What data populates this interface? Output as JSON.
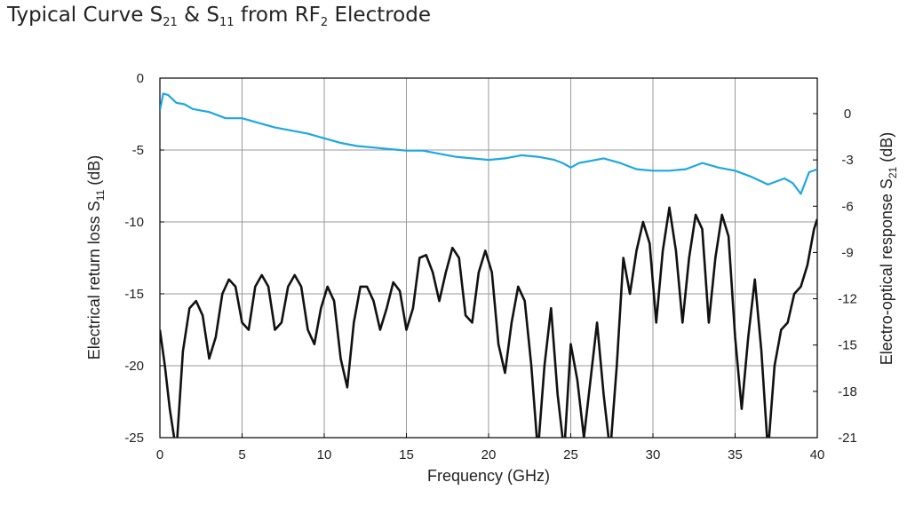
{
  "title": {
    "prefix": "Typical Curve S",
    "s21_sub": "21",
    "mid": " & S",
    "s11_sub": "11",
    "mid2": " from RF",
    "rf_sub": "2",
    "suffix": " Electrode"
  },
  "chart_data": {
    "type": "line",
    "xlabel": "Frequency (GHz)",
    "ylabel_left": {
      "text": "Electrical return loss S",
      "sub": "11",
      "unit": " (dB)"
    },
    "ylabel_right": {
      "text": "Electro-optical response S",
      "sub": "21",
      "unit": " (dB)"
    },
    "xlim": [
      0,
      40
    ],
    "ylim_left": [
      -25,
      0
    ],
    "ylim_right": [
      -21,
      2.3
    ],
    "xticks": [
      "0",
      "5",
      "10",
      "15",
      "20",
      "25",
      "30",
      "35",
      "40"
    ],
    "yticks_left": [
      "0",
      "-5",
      "-10",
      "-15",
      "-20",
      "-25"
    ],
    "yticks_right": [
      "0",
      "-3",
      "-6",
      "-9",
      "-12",
      "-15",
      "-18",
      "-21"
    ],
    "grid": true,
    "colors": {
      "s21": "#1ea7e1",
      "s11": "#111111"
    },
    "series": [
      {
        "key": "s21",
        "axis": "right",
        "x": [
          0,
          0.2,
          0.5,
          1,
          1.5,
          2,
          3,
          4,
          5,
          6,
          7,
          8,
          9,
          10,
          11,
          12,
          13,
          14,
          15,
          16,
          17,
          18,
          19,
          20,
          21,
          22,
          23,
          24,
          24.5,
          25,
          25.5,
          26,
          27,
          28,
          29,
          30,
          31,
          32,
          33,
          34,
          35,
          36,
          37,
          38,
          38.5,
          39,
          39.5,
          40
        ],
        "y": [
          0.2,
          1.3,
          1.2,
          0.7,
          0.6,
          0.3,
          0.1,
          -0.3,
          -0.3,
          -0.6,
          -0.9,
          -1.1,
          -1.3,
          -1.6,
          -1.9,
          -2.1,
          -2.2,
          -2.3,
          -2.4,
          -2.4,
          -2.6,
          -2.8,
          -2.9,
          -3.0,
          -2.9,
          -2.7,
          -2.8,
          -3.0,
          -3.2,
          -3.5,
          -3.2,
          -3.1,
          -2.9,
          -3.2,
          -3.6,
          -3.7,
          -3.7,
          -3.6,
          -3.2,
          -3.5,
          -3.7,
          -4.1,
          -4.6,
          -4.2,
          -4.5,
          -5.2,
          -3.8,
          -3.6
        ]
      },
      {
        "key": "s11",
        "axis": "left",
        "x": [
          0,
          0.3,
          0.6,
          1.0,
          1.4,
          1.8,
          2.2,
          2.6,
          3.0,
          3.4,
          3.8,
          4.2,
          4.6,
          5.0,
          5.4,
          5.8,
          6.2,
          6.6,
          7.0,
          7.4,
          7.8,
          8.2,
          8.6,
          9.0,
          9.4,
          9.8,
          10.2,
          10.6,
          11.0,
          11.4,
          11.8,
          12.2,
          12.6,
          13.0,
          13.4,
          13.8,
          14.2,
          14.6,
          15.0,
          15.4,
          15.8,
          16.2,
          16.6,
          17.0,
          17.4,
          17.8,
          18.2,
          18.6,
          19.0,
          19.4,
          19.8,
          20.2,
          20.6,
          21.0,
          21.4,
          21.8,
          22.2,
          22.6,
          23.0,
          23.4,
          23.8,
          24.2,
          24.6,
          25.0,
          25.4,
          25.8,
          26.2,
          26.6,
          27.0,
          27.4,
          27.8,
          28.2,
          28.6,
          29.0,
          29.4,
          29.8,
          30.2,
          30.6,
          31.0,
          31.4,
          31.8,
          32.2,
          32.6,
          33.0,
          33.4,
          33.8,
          34.2,
          34.6,
          35.0,
          35.4,
          35.8,
          36.2,
          36.6,
          37.0,
          37.4,
          37.8,
          38.2,
          38.6,
          39.0,
          39.4,
          39.8,
          40.0
        ],
        "y": [
          -17.5,
          -20,
          -23,
          -26,
          -19,
          -16,
          -15.5,
          -16.5,
          -19.5,
          -18,
          -15,
          -14,
          -14.5,
          -17,
          -17.5,
          -14.5,
          -13.7,
          -14.5,
          -17.5,
          -17,
          -14.5,
          -13.7,
          -14.5,
          -17.5,
          -18.5,
          -16,
          -14.5,
          -15.5,
          -19.5,
          -21.5,
          -17,
          -14.5,
          -14.5,
          -15.5,
          -17.5,
          -16,
          -14.2,
          -14.8,
          -17.5,
          -16,
          -12.5,
          -12.3,
          -13.5,
          -15.5,
          -13.5,
          -11.8,
          -12.5,
          -16.5,
          -17,
          -13.5,
          -12,
          -13.5,
          -18.5,
          -20.5,
          -17,
          -14.5,
          -15.5,
          -20,
          -26,
          -20,
          -16,
          -22,
          -26,
          -18.5,
          -21,
          -25,
          -21,
          -17,
          -22,
          -26,
          -20,
          -12.5,
          -15,
          -12,
          -10,
          -11.5,
          -17,
          -12,
          -9,
          -12,
          -17,
          -12.5,
          -9.5,
          -10.5,
          -17,
          -12.5,
          -9.5,
          -11,
          -18,
          -23,
          -18,
          -14,
          -19,
          -26,
          -20,
          -17.5,
          -17,
          -15,
          -14.5,
          -13,
          -10.5,
          -9.8
        ]
      }
    ]
  }
}
